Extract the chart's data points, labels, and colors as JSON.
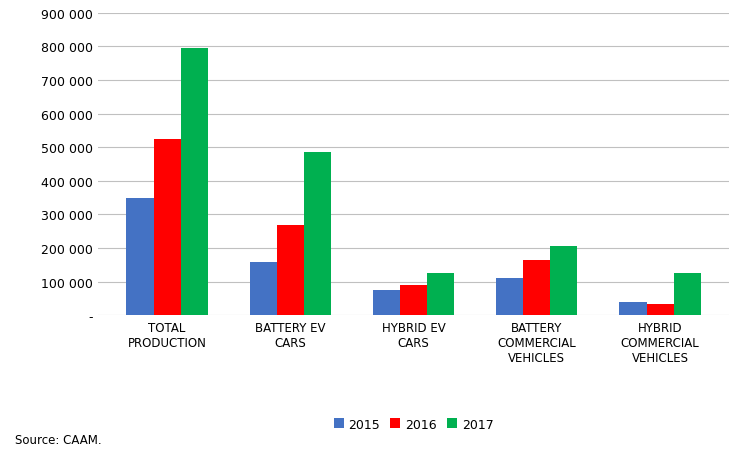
{
  "categories": [
    "TOTAL\nPRODUCTION",
    "BATTERY EV\nCARS",
    "HYBRID EV\nCARS",
    "BATTERY\nCOMMERCIAL\nVEHICLES",
    "HYBRID\nCOMMERCIAL\nVEHICLES"
  ],
  "series": {
    "2015": [
      350000,
      160000,
      75000,
      110000,
      40000
    ],
    "2016": [
      525000,
      270000,
      90000,
      165000,
      35000
    ],
    "2017": [
      795000,
      485000,
      125000,
      205000,
      125000
    ]
  },
  "colors": {
    "2015": "#4472C4",
    "2016": "#FF0000",
    "2017": "#00B050"
  },
  "ylim": [
    0,
    900000
  ],
  "ytick_step": 100000,
  "source_text": "Source: CAAM.",
  "background_color": "#FFFFFF",
  "grid_color": "#C0C0C0",
  "bar_width": 0.22
}
